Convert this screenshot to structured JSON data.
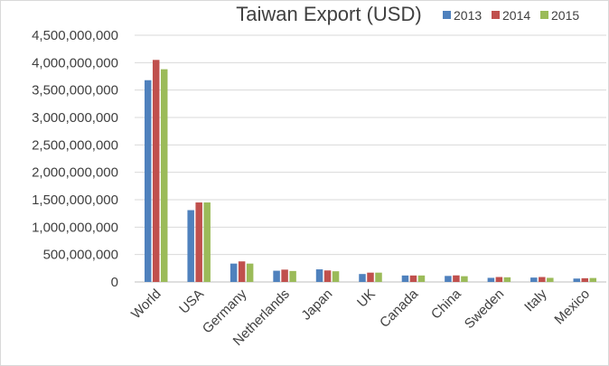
{
  "chart_data": {
    "type": "bar",
    "title": "Taiwan Export (USD)",
    "xlabel": "",
    "ylabel": "",
    "categories": [
      "World",
      "USA",
      "Germany",
      "Netherlands",
      "Japan",
      "UK",
      "Canada",
      "China",
      "Sweden",
      "Italy",
      "Mexico"
    ],
    "series": [
      {
        "name": "2013",
        "color": "#4f81bd",
        "values": [
          3680000000,
          1310000000,
          335000000,
          205000000,
          230000000,
          145000000,
          118000000,
          110000000,
          75000000,
          80000000,
          62000000
        ]
      },
      {
        "name": "2014",
        "color": "#c0504d",
        "values": [
          4050000000,
          1450000000,
          375000000,
          225000000,
          210000000,
          170000000,
          118000000,
          120000000,
          90000000,
          90000000,
          68000000
        ]
      },
      {
        "name": "2015",
        "color": "#9bbb59",
        "values": [
          3880000000,
          1450000000,
          335000000,
          200000000,
          195000000,
          170000000,
          118000000,
          105000000,
          85000000,
          75000000,
          72000000
        ]
      }
    ],
    "ylim": [
      0,
      4500000000
    ],
    "yticks": [
      "0",
      "500,000,000",
      "1,000,000,000",
      "1,500,000,000",
      "2,000,000,000",
      "2,500,000,000",
      "3,000,000,000",
      "3,500,000,000",
      "4,000,000,000",
      "4,500,000,000"
    ],
    "grid": true,
    "legend_position": "top-right"
  }
}
